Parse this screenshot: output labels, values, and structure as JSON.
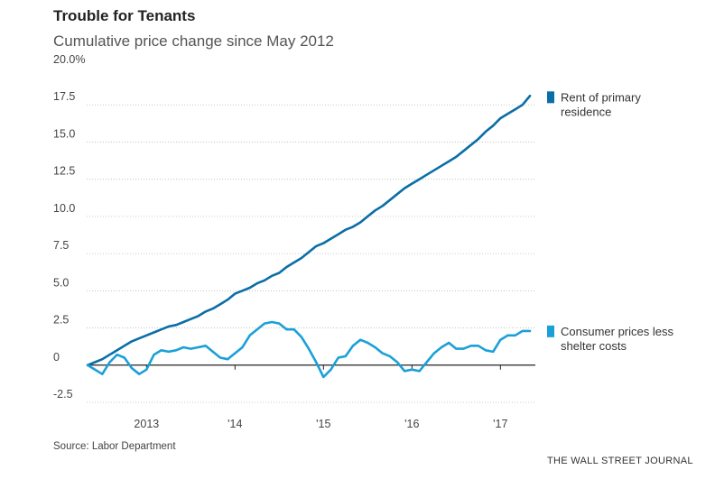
{
  "chart_data": {
    "type": "line",
    "title": "Trouble for Tenants",
    "subtitle": "Cumulative price change since May 2012",
    "source": "Source: Labor Department",
    "brand": "THE WALL STREET JOURNAL",
    "ylim": [
      -2.5,
      20.0
    ],
    "yticks": [
      {
        "value": 20,
        "label": "20.0%"
      },
      {
        "value": 17.5,
        "label": "17.5"
      },
      {
        "value": 15,
        "label": "15.0"
      },
      {
        "value": 12.5,
        "label": "12.5"
      },
      {
        "value": 10,
        "label": "10.0"
      },
      {
        "value": 7.5,
        "label": "7.5"
      },
      {
        "value": 5,
        "label": "5.0"
      },
      {
        "value": 2.5,
        "label": "2.5"
      },
      {
        "value": 0,
        "label": "0"
      },
      {
        "value": -2.5,
        "label": "-2.5"
      }
    ],
    "xlim": [
      "2012-05",
      "2017-05"
    ],
    "xticks": [
      {
        "value": "2013-01",
        "label": "2013"
      },
      {
        "value": "2014-01",
        "label": "'14"
      },
      {
        "value": "2015-01",
        "label": "'15"
      },
      {
        "value": "2016-01",
        "label": "'16"
      },
      {
        "value": "2017-01",
        "label": "'17"
      }
    ],
    "legend_position": "right",
    "series": [
      {
        "name": "Rent of primary residence",
        "legend_lines": [
          "Rent of primary",
          "residence"
        ],
        "color": "#0a6ea6",
        "x": [
          "2012-05",
          "2012-06",
          "2012-07",
          "2012-08",
          "2012-09",
          "2012-10",
          "2012-11",
          "2012-12",
          "2013-01",
          "2013-02",
          "2013-03",
          "2013-04",
          "2013-05",
          "2013-06",
          "2013-07",
          "2013-08",
          "2013-09",
          "2013-10",
          "2013-11",
          "2013-12",
          "2014-01",
          "2014-02",
          "2014-03",
          "2014-04",
          "2014-05",
          "2014-06",
          "2014-07",
          "2014-08",
          "2014-09",
          "2014-10",
          "2014-11",
          "2014-12",
          "2015-01",
          "2015-02",
          "2015-03",
          "2015-04",
          "2015-05",
          "2015-06",
          "2015-07",
          "2015-08",
          "2015-09",
          "2015-10",
          "2015-11",
          "2015-12",
          "2016-01",
          "2016-02",
          "2016-03",
          "2016-04",
          "2016-05",
          "2016-06",
          "2016-07",
          "2016-08",
          "2016-09",
          "2016-10",
          "2016-11",
          "2016-12",
          "2017-01",
          "2017-02",
          "2017-03",
          "2017-04",
          "2017-05"
        ],
        "values": [
          0.0,
          0.2,
          0.4,
          0.7,
          1.0,
          1.3,
          1.6,
          1.8,
          2.0,
          2.2,
          2.4,
          2.6,
          2.7,
          2.9,
          3.1,
          3.3,
          3.6,
          3.8,
          4.1,
          4.4,
          4.8,
          5.0,
          5.2,
          5.5,
          5.7,
          6.0,
          6.2,
          6.6,
          6.9,
          7.2,
          7.6,
          8.0,
          8.2,
          8.5,
          8.8,
          9.1,
          9.3,
          9.6,
          10.0,
          10.4,
          10.7,
          11.1,
          11.5,
          11.9,
          12.2,
          12.5,
          12.8,
          13.1,
          13.4,
          13.7,
          14.0,
          14.4,
          14.8,
          15.2,
          15.7,
          16.1,
          16.6,
          16.9,
          17.2,
          17.5,
          18.1
        ]
      },
      {
        "name": "Consumer prices less shelter costs",
        "legend_lines": [
          "Consumer prices less",
          "shelter costs"
        ],
        "color": "#1aa0d8",
        "x": [
          "2012-05",
          "2012-06",
          "2012-07",
          "2012-08",
          "2012-09",
          "2012-10",
          "2012-11",
          "2012-12",
          "2013-01",
          "2013-02",
          "2013-03",
          "2013-04",
          "2013-05",
          "2013-06",
          "2013-07",
          "2013-08",
          "2013-09",
          "2013-10",
          "2013-11",
          "2013-12",
          "2014-01",
          "2014-02",
          "2014-03",
          "2014-04",
          "2014-05",
          "2014-06",
          "2014-07",
          "2014-08",
          "2014-09",
          "2014-10",
          "2014-11",
          "2014-12",
          "2015-01",
          "2015-02",
          "2015-03",
          "2015-04",
          "2015-05",
          "2015-06",
          "2015-07",
          "2015-08",
          "2015-09",
          "2015-10",
          "2015-11",
          "2015-12",
          "2016-01",
          "2016-02",
          "2016-03",
          "2016-04",
          "2016-05",
          "2016-06",
          "2016-07",
          "2016-08",
          "2016-09",
          "2016-10",
          "2016-11",
          "2016-12",
          "2017-01",
          "2017-02",
          "2017-03",
          "2017-04",
          "2017-05"
        ],
        "values": [
          0.0,
          -0.3,
          -0.6,
          0.2,
          0.7,
          0.5,
          -0.2,
          -0.6,
          -0.3,
          0.7,
          1.0,
          0.9,
          1.0,
          1.2,
          1.1,
          1.2,
          1.3,
          0.9,
          0.5,
          0.4,
          0.8,
          1.2,
          2.0,
          2.4,
          2.8,
          2.9,
          2.8,
          2.4,
          2.4,
          1.9,
          1.1,
          0.2,
          -0.8,
          -0.3,
          0.5,
          0.6,
          1.3,
          1.7,
          1.5,
          1.2,
          0.8,
          0.6,
          0.2,
          -0.4,
          -0.3,
          -0.4,
          0.2,
          0.8,
          1.2,
          1.5,
          1.1,
          1.1,
          1.3,
          1.3,
          1.0,
          0.9,
          1.7,
          2.0,
          2.0,
          2.3,
          2.3
        ]
      }
    ]
  }
}
